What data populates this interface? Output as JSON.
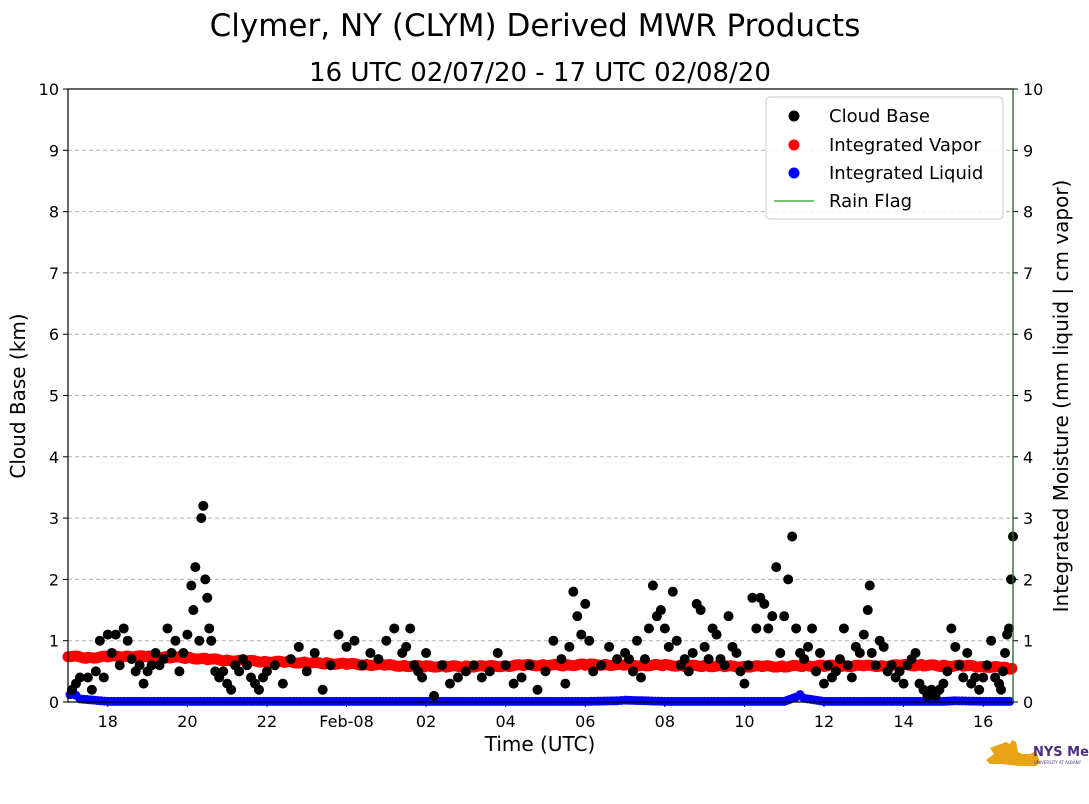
{
  "chart_data": {
    "type": "scatter",
    "title": "Clymer, NY (CLYM) Derived MWR Products",
    "subtitle": "16 UTC 02/07/20 - 17 UTC 02/08/20",
    "xlabel": "Time (UTC)",
    "ylabel": "Cloud Base (km)",
    "y2label": "Integrated Moisture (mm liquid | cm vapor)",
    "xlim": [
      17.0,
      40.75
    ],
    "ylim": [
      0,
      10
    ],
    "y2lim": [
      0,
      10
    ],
    "x_tick_values": [
      18,
      20,
      22,
      24,
      26,
      28,
      30,
      32,
      34,
      36,
      38,
      40
    ],
    "x_tick_labels": [
      "18",
      "20",
      "22",
      "Feb-08",
      "02",
      "04",
      "06",
      "08",
      "10",
      "12",
      "14",
      "16"
    ],
    "y_ticks": [
      0,
      1,
      2,
      3,
      4,
      5,
      6,
      7,
      8,
      9,
      10
    ],
    "grid": "y dashed",
    "legend_position": "top-right",
    "x_units": "hours since 00 UTC 02/07/20",
    "series": [
      {
        "name": "Cloud Base",
        "color": "#000000",
        "marker": "circle",
        "points": [
          [
            17.1,
            0.2
          ],
          [
            17.2,
            0.3
          ],
          [
            17.3,
            0.4
          ],
          [
            17.5,
            0.4
          ],
          [
            17.6,
            0.2
          ],
          [
            17.7,
            0.5
          ],
          [
            17.8,
            1.0
          ],
          [
            17.9,
            0.4
          ],
          [
            18.0,
            1.1
          ],
          [
            18.1,
            0.8
          ],
          [
            18.2,
            1.1
          ],
          [
            18.3,
            0.6
          ],
          [
            18.4,
            1.2
          ],
          [
            18.5,
            1.0
          ],
          [
            18.6,
            0.7
          ],
          [
            18.7,
            0.5
          ],
          [
            18.8,
            0.6
          ],
          [
            18.9,
            0.3
          ],
          [
            19.0,
            0.5
          ],
          [
            19.1,
            0.6
          ],
          [
            19.2,
            0.8
          ],
          [
            19.3,
            0.6
          ],
          [
            19.4,
            0.7
          ],
          [
            19.5,
            1.2
          ],
          [
            19.6,
            0.8
          ],
          [
            19.7,
            1.0
          ],
          [
            19.8,
            0.5
          ],
          [
            19.9,
            0.8
          ],
          [
            20.0,
            1.1
          ],
          [
            20.1,
            1.9
          ],
          [
            20.15,
            1.5
          ],
          [
            20.2,
            2.2
          ],
          [
            20.3,
            1.0
          ],
          [
            20.35,
            3.0
          ],
          [
            20.4,
            3.2
          ],
          [
            20.45,
            2.0
          ],
          [
            20.5,
            1.7
          ],
          [
            20.55,
            1.2
          ],
          [
            20.6,
            1.0
          ],
          [
            20.7,
            0.5
          ],
          [
            20.8,
            0.4
          ],
          [
            20.9,
            0.5
          ],
          [
            21.0,
            0.3
          ],
          [
            21.1,
            0.2
          ],
          [
            21.2,
            0.6
          ],
          [
            21.3,
            0.5
          ],
          [
            21.4,
            0.7
          ],
          [
            21.5,
            0.6
          ],
          [
            21.6,
            0.4
          ],
          [
            21.7,
            0.3
          ],
          [
            21.8,
            0.2
          ],
          [
            21.9,
            0.4
          ],
          [
            22.0,
            0.5
          ],
          [
            22.2,
            0.6
          ],
          [
            22.4,
            0.3
          ],
          [
            22.6,
            0.7
          ],
          [
            22.8,
            0.9
          ],
          [
            23.0,
            0.5
          ],
          [
            23.2,
            0.8
          ],
          [
            23.4,
            0.2
          ],
          [
            23.6,
            0.6
          ],
          [
            23.8,
            1.1
          ],
          [
            24.0,
            0.9
          ],
          [
            24.2,
            1.0
          ],
          [
            24.4,
            0.6
          ],
          [
            24.6,
            0.8
          ],
          [
            24.8,
            0.7
          ],
          [
            25.0,
            1.0
          ],
          [
            25.2,
            1.2
          ],
          [
            25.4,
            0.8
          ],
          [
            25.5,
            0.9
          ],
          [
            25.6,
            1.2
          ],
          [
            25.7,
            0.6
          ],
          [
            25.8,
            0.5
          ],
          [
            25.9,
            0.4
          ],
          [
            26.0,
            0.8
          ],
          [
            26.2,
            0.1
          ],
          [
            26.4,
            0.6
          ],
          [
            26.6,
            0.3
          ],
          [
            26.8,
            0.4
          ],
          [
            27.0,
            0.5
          ],
          [
            27.2,
            0.6
          ],
          [
            27.4,
            0.4
          ],
          [
            27.6,
            0.5
          ],
          [
            27.8,
            0.8
          ],
          [
            28.0,
            0.6
          ],
          [
            28.2,
            0.3
          ],
          [
            28.4,
            0.4
          ],
          [
            28.6,
            0.6
          ],
          [
            28.8,
            0.2
          ],
          [
            29.0,
            0.5
          ],
          [
            29.2,
            1.0
          ],
          [
            29.4,
            0.7
          ],
          [
            29.5,
            0.3
          ],
          [
            29.6,
            0.9
          ],
          [
            29.7,
            1.8
          ],
          [
            29.8,
            1.4
          ],
          [
            29.9,
            1.1
          ],
          [
            30.0,
            1.6
          ],
          [
            30.1,
            1.0
          ],
          [
            30.2,
            0.5
          ],
          [
            30.4,
            0.6
          ],
          [
            30.6,
            0.9
          ],
          [
            30.8,
            0.7
          ],
          [
            31.0,
            0.8
          ],
          [
            31.1,
            0.7
          ],
          [
            31.2,
            0.5
          ],
          [
            31.3,
            1.0
          ],
          [
            31.4,
            0.4
          ],
          [
            31.5,
            0.7
          ],
          [
            31.6,
            1.2
          ],
          [
            31.7,
            1.9
          ],
          [
            31.8,
            1.4
          ],
          [
            31.9,
            1.5
          ],
          [
            32.0,
            1.2
          ],
          [
            32.1,
            0.9
          ],
          [
            32.2,
            1.8
          ],
          [
            32.3,
            1.0
          ],
          [
            32.4,
            0.6
          ],
          [
            32.5,
            0.7
          ],
          [
            32.6,
            0.5
          ],
          [
            32.7,
            0.8
          ],
          [
            32.8,
            1.6
          ],
          [
            32.9,
            1.5
          ],
          [
            33.0,
            0.9
          ],
          [
            33.1,
            0.7
          ],
          [
            33.2,
            1.2
          ],
          [
            33.3,
            1.1
          ],
          [
            33.4,
            0.7
          ],
          [
            33.5,
            0.6
          ],
          [
            33.6,
            1.4
          ],
          [
            33.7,
            0.9
          ],
          [
            33.8,
            0.8
          ],
          [
            33.9,
            0.5
          ],
          [
            34.0,
            0.3
          ],
          [
            34.1,
            0.6
          ],
          [
            34.2,
            1.7
          ],
          [
            34.3,
            1.2
          ],
          [
            34.4,
            1.7
          ],
          [
            34.5,
            1.6
          ],
          [
            34.6,
            1.2
          ],
          [
            34.7,
            1.4
          ],
          [
            34.8,
            2.2
          ],
          [
            34.9,
            0.8
          ],
          [
            35.0,
            1.4
          ],
          [
            35.1,
            2.0
          ],
          [
            35.2,
            2.7
          ],
          [
            35.3,
            1.2
          ],
          [
            35.4,
            0.8
          ],
          [
            35.5,
            0.7
          ],
          [
            35.6,
            0.9
          ],
          [
            35.7,
            1.2
          ],
          [
            35.8,
            0.5
          ],
          [
            35.9,
            0.8
          ],
          [
            36.0,
            0.3
          ],
          [
            36.1,
            0.6
          ],
          [
            36.2,
            0.4
          ],
          [
            36.3,
            0.5
          ],
          [
            36.4,
            0.7
          ],
          [
            36.5,
            1.2
          ],
          [
            36.6,
            0.6
          ],
          [
            36.7,
            0.4
          ],
          [
            36.8,
            0.9
          ],
          [
            36.9,
            0.8
          ],
          [
            37.0,
            1.1
          ],
          [
            37.1,
            1.5
          ],
          [
            37.15,
            1.9
          ],
          [
            37.2,
            0.8
          ],
          [
            37.3,
            0.6
          ],
          [
            37.4,
            1.0
          ],
          [
            37.5,
            0.9
          ],
          [
            37.6,
            0.5
          ],
          [
            37.7,
            0.6
          ],
          [
            37.8,
            0.4
          ],
          [
            37.9,
            0.5
          ],
          [
            38.0,
            0.3
          ],
          [
            38.1,
            0.6
          ],
          [
            38.2,
            0.7
          ],
          [
            38.3,
            0.8
          ],
          [
            38.4,
            0.3
          ],
          [
            38.5,
            0.2
          ],
          [
            38.6,
            0.1
          ],
          [
            38.7,
            0.2
          ],
          [
            38.8,
            0.1
          ],
          [
            38.9,
            0.2
          ],
          [
            39.0,
            0.3
          ],
          [
            39.1,
            0.5
          ],
          [
            39.2,
            1.2
          ],
          [
            39.3,
            0.9
          ],
          [
            39.4,
            0.6
          ],
          [
            39.5,
            0.4
          ],
          [
            39.6,
            0.8
          ],
          [
            39.7,
            0.3
          ],
          [
            39.8,
            0.4
          ],
          [
            39.9,
            0.2
          ],
          [
            40.0,
            0.4
          ],
          [
            40.1,
            0.6
          ],
          [
            40.2,
            1.0
          ],
          [
            40.3,
            0.4
          ],
          [
            40.4,
            0.3
          ],
          [
            40.45,
            0.2
          ],
          [
            40.5,
            0.5
          ],
          [
            40.55,
            0.8
          ],
          [
            40.6,
            1.1
          ],
          [
            40.65,
            1.2
          ],
          [
            40.7,
            2.0
          ],
          [
            40.75,
            2.7
          ]
        ]
      },
      {
        "name": "Integrated Vapor",
        "color": "#ff0000",
        "marker": "circle",
        "points": [
          [
            17.0,
            0.75
          ],
          [
            17.5,
            0.72
          ],
          [
            18.0,
            0.74
          ],
          [
            18.5,
            0.75
          ],
          [
            19.0,
            0.74
          ],
          [
            19.5,
            0.73
          ],
          [
            20.0,
            0.72
          ],
          [
            20.5,
            0.7
          ],
          [
            21.0,
            0.68
          ],
          [
            21.5,
            0.67
          ],
          [
            22.0,
            0.66
          ],
          [
            22.5,
            0.65
          ],
          [
            23.0,
            0.64
          ],
          [
            23.5,
            0.63
          ],
          [
            24.0,
            0.62
          ],
          [
            24.5,
            0.61
          ],
          [
            25.0,
            0.6
          ],
          [
            25.5,
            0.59
          ],
          [
            26.0,
            0.58
          ],
          [
            26.5,
            0.58
          ],
          [
            27.0,
            0.58
          ],
          [
            27.5,
            0.58
          ],
          [
            28.0,
            0.59
          ],
          [
            28.5,
            0.6
          ],
          [
            29.0,
            0.6
          ],
          [
            29.5,
            0.6
          ],
          [
            30.0,
            0.61
          ],
          [
            30.5,
            0.61
          ],
          [
            31.0,
            0.6
          ],
          [
            31.5,
            0.6
          ],
          [
            32.0,
            0.6
          ],
          [
            32.5,
            0.59
          ],
          [
            33.0,
            0.59
          ],
          [
            33.5,
            0.58
          ],
          [
            34.0,
            0.58
          ],
          [
            34.5,
            0.58
          ],
          [
            35.0,
            0.58
          ],
          [
            35.5,
            0.59
          ],
          [
            36.0,
            0.59
          ],
          [
            36.5,
            0.59
          ],
          [
            37.0,
            0.59
          ],
          [
            37.5,
            0.59
          ],
          [
            38.0,
            0.6
          ],
          [
            38.5,
            0.6
          ],
          [
            39.0,
            0.59
          ],
          [
            39.5,
            0.59
          ],
          [
            40.0,
            0.58
          ],
          [
            40.5,
            0.56
          ],
          [
            40.75,
            0.54
          ]
        ]
      },
      {
        "name": "Integrated Liquid",
        "color": "#0000ff",
        "marker": "circle",
        "points": [
          [
            17.05,
            0.12
          ],
          [
            17.1,
            0.14
          ],
          [
            17.15,
            0.13
          ],
          [
            17.2,
            0.11
          ],
          [
            17.3,
            0.05
          ],
          [
            18.0,
            0.01
          ],
          [
            19.0,
            0.01
          ],
          [
            20.0,
            0.01
          ],
          [
            21.0,
            0.01
          ],
          [
            22.0,
            0.01
          ],
          [
            23.0,
            0.01
          ],
          [
            24.0,
            0.01
          ],
          [
            25.0,
            0.01
          ],
          [
            26.0,
            0.01
          ],
          [
            27.0,
            0.01
          ],
          [
            28.0,
            0.01
          ],
          [
            29.0,
            0.01
          ],
          [
            30.0,
            0.01
          ],
          [
            30.8,
            0.02
          ],
          [
            31.0,
            0.03
          ],
          [
            32.0,
            0.01
          ],
          [
            33.0,
            0.01
          ],
          [
            34.0,
            0.01
          ],
          [
            35.0,
            0.01
          ],
          [
            35.3,
            0.08
          ],
          [
            35.4,
            0.12
          ],
          [
            35.5,
            0.06
          ],
          [
            36.0,
            0.01
          ],
          [
            37.0,
            0.01
          ],
          [
            38.0,
            0.01
          ],
          [
            39.0,
            0.01
          ],
          [
            39.3,
            0.02
          ],
          [
            40.0,
            0.01
          ],
          [
            40.75,
            0.01
          ]
        ]
      },
      {
        "name": "Rain Flag",
        "color": "#4caf50",
        "marker": "line",
        "points": []
      }
    ]
  },
  "logo": {
    "text": "NYS Mesonet",
    "subtext": "UNIVERSITY AT ALBANY",
    "color": "#e8a317",
    "text_color": "#4b2e83"
  }
}
